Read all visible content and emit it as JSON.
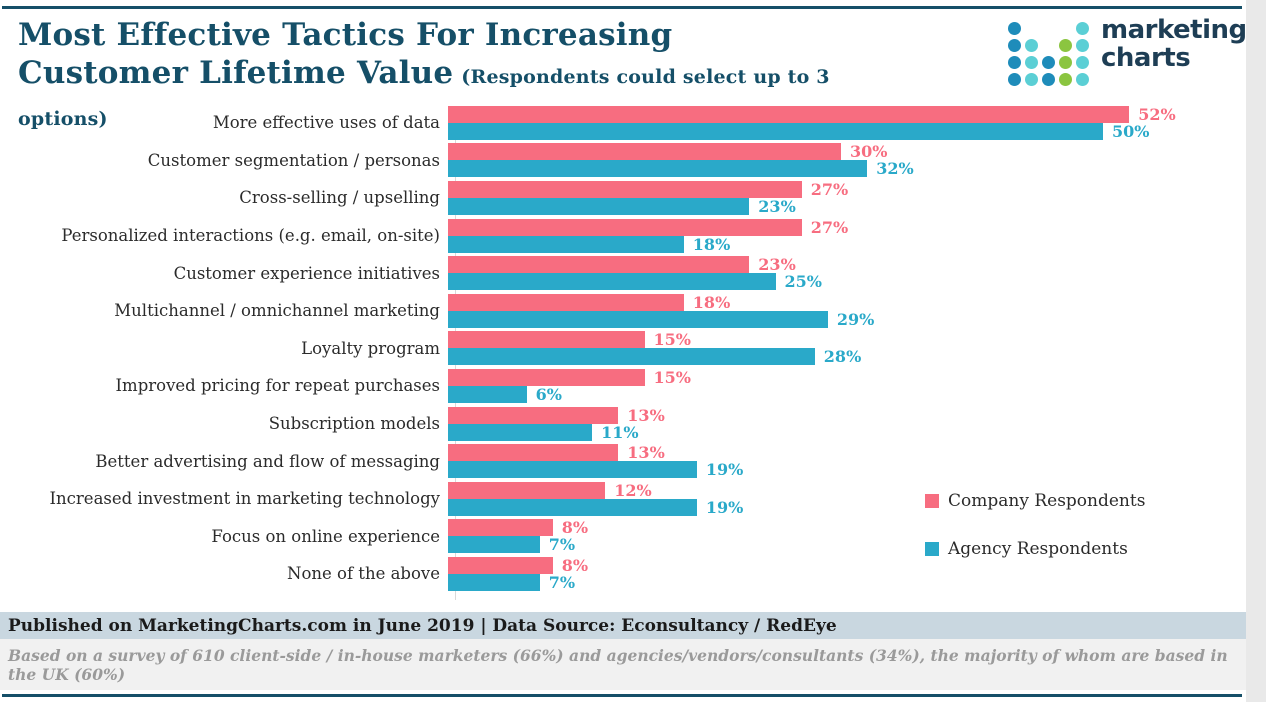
{
  "header": {
    "title_line1": "Most Effective Tactics For Increasing",
    "title_line2": "Customer Lifetime Value",
    "subtitle": "(Respondents could select up to 3 options)"
  },
  "logo": {
    "text_line1": "marketing",
    "text_line2": "charts",
    "dot_colors": {
      "blue": "#1e8cba",
      "teal": "#5bcfd5",
      "green": "#8bc540"
    },
    "dot_pattern": [
      [
        "blue",
        null,
        null,
        null,
        "teal"
      ],
      [
        "blue",
        "teal",
        null,
        "green",
        "teal"
      ],
      [
        "blue",
        "teal",
        "blue",
        "green",
        "teal"
      ],
      [
        "blue",
        "teal",
        "blue",
        "green",
        "teal"
      ]
    ]
  },
  "chart_data": {
    "type": "bar",
    "orientation": "horizontal",
    "title": "Most Effective Tactics For Increasing Customer Lifetime Value",
    "categories": [
      "More effective uses of data",
      "Customer segmentation / personas",
      "Cross-selling / upselling",
      "Personalized interactions (e.g. email, on-site)",
      "Customer experience initiatives",
      "Multichannel / omnichannel marketing",
      "Loyalty program",
      "Improved pricing for repeat purchases",
      "Subscription models",
      "Better advertising and flow of messaging",
      "Increased investment in marketing technology",
      "Focus on online experience",
      "None of the above"
    ],
    "series": [
      {
        "name": "Company Respondents",
        "color": "#f76d80",
        "values": [
          52,
          30,
          27,
          27,
          23,
          18,
          15,
          15,
          13,
          13,
          12,
          8,
          8
        ]
      },
      {
        "name": "Agency Respondents",
        "color": "#2aa9c9",
        "values": [
          50,
          32,
          23,
          18,
          25,
          29,
          28,
          6,
          11,
          19,
          19,
          7,
          7
        ]
      }
    ],
    "value_suffix": "%",
    "xlim": [
      0,
      55
    ],
    "grid": false,
    "legend_position": "right"
  },
  "footer": {
    "published": "Published on MarketingCharts.com in June 2019 | Data Source: Econsultancy / RedEye",
    "note": "Based on a survey of 610 client-side / in-house marketers (66%) and agencies/vendors/consultants (34%), the majority of whom are based in the UK (60%)"
  },
  "colors": {
    "title": "#154f68",
    "rule": "#154f68",
    "company": "#f76d80",
    "agency": "#2aa9c9",
    "published_bg": "#c9d7e0",
    "note_bg": "#f1f1f1",
    "axis": "#d9d9d9"
  }
}
